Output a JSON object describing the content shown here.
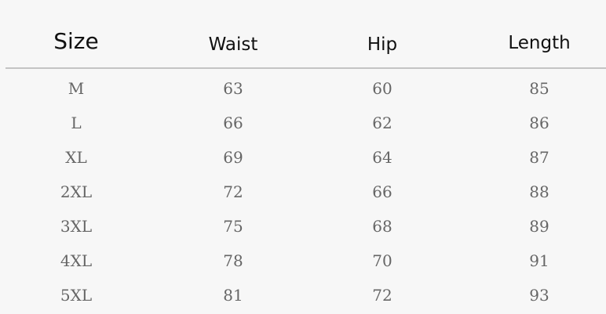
{
  "table": {
    "headers": [
      "Size",
      "Waist",
      "Hip",
      "Length"
    ],
    "rows": [
      [
        "M",
        "63",
        "60",
        "85"
      ],
      [
        "L",
        "66",
        "62",
        "86"
      ],
      [
        "XL",
        "69",
        "64",
        "87"
      ],
      [
        "2XL",
        "72",
        "66",
        "88"
      ],
      [
        "3XL",
        "75",
        "68",
        "89"
      ],
      [
        "4XL",
        "78",
        "70",
        "91"
      ],
      [
        "5XL",
        "81",
        "72",
        "93"
      ]
    ]
  }
}
